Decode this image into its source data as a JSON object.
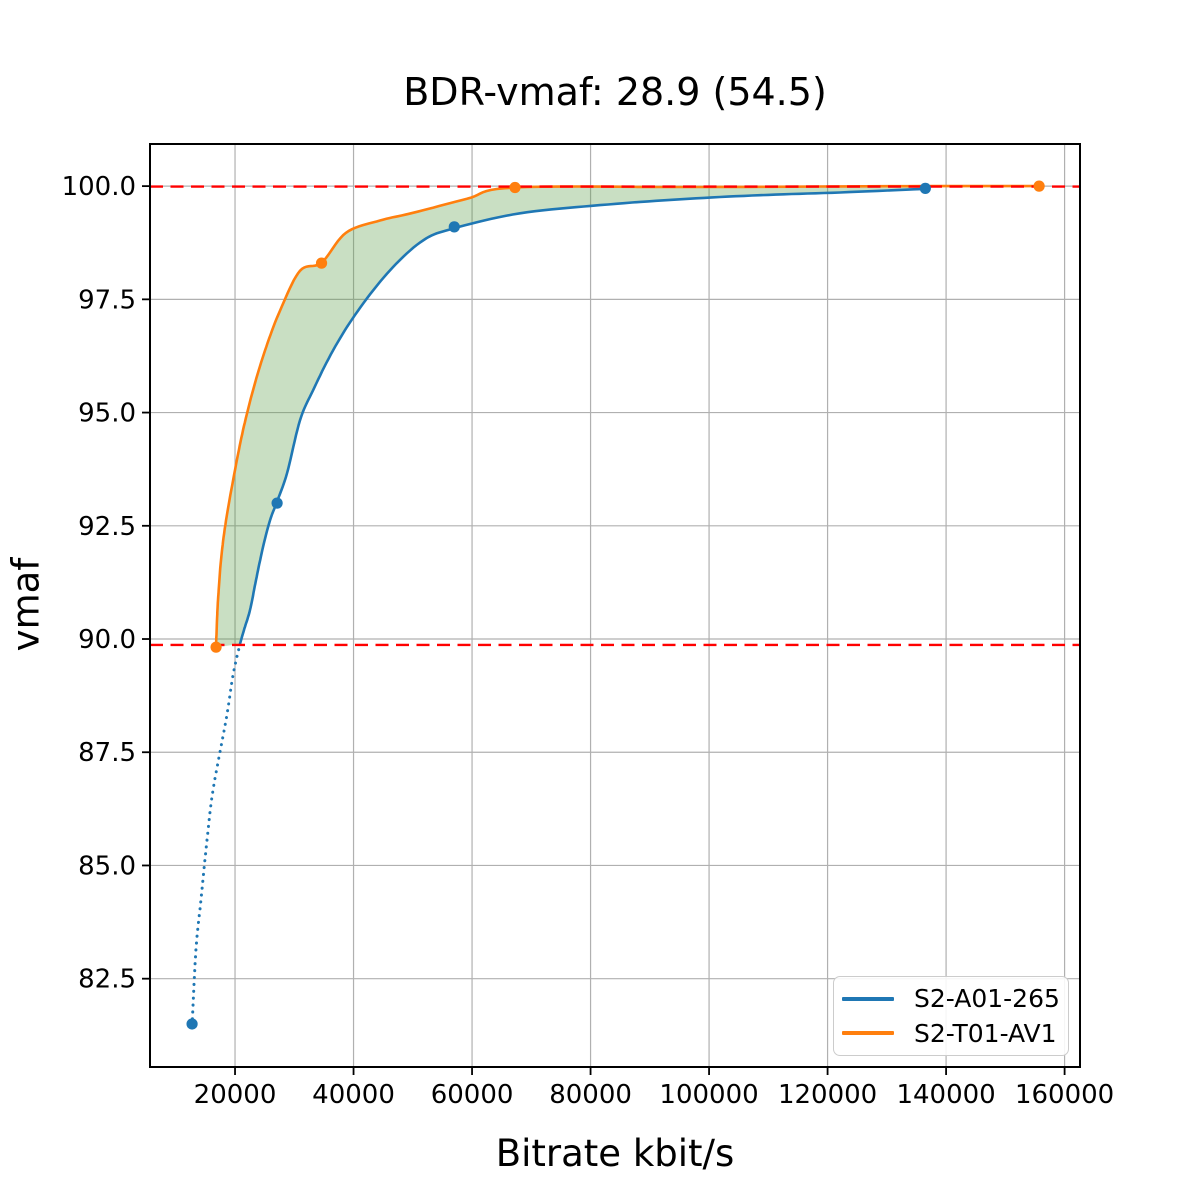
{
  "figure": {
    "title": "BDR-vmaf: 28.9 (54.5)",
    "xlabel": "Bitrate kbit/s",
    "ylabel": "vmaf"
  },
  "legend": {
    "entries": [
      {
        "label": "S2-A01-265",
        "color": "#1f77b4"
      },
      {
        "label": "S2-T01-AV1",
        "color": "#ff7f0e"
      }
    ]
  },
  "chart_data": {
    "type": "line",
    "title": "BDR-vmaf: 28.9 (54.5)",
    "xlabel": "Bitrate kbit/s",
    "ylabel": "vmaf",
    "xlim": [
      5650,
      162600
    ],
    "ylim": [
      80.55,
      100.93
    ],
    "grid": true,
    "grid_color": "#b0b0b0",
    "spine_color": "#000000",
    "legend_position": "lower right",
    "x_ticks": [
      20000,
      40000,
      60000,
      80000,
      100000,
      120000,
      140000,
      160000
    ],
    "x_tick_labels": [
      "20000",
      "40000",
      "60000",
      "80000",
      "100000",
      "120000",
      "140000",
      "160000"
    ],
    "y_ticks": [
      82.5,
      85.0,
      87.5,
      90.0,
      92.5,
      95.0,
      97.5,
      100.0
    ],
    "y_tick_labels": [
      "82.5",
      "85.0",
      "87.5",
      "90.0",
      "92.5",
      "95.0",
      "97.5",
      "100.0"
    ],
    "hlines": [
      {
        "y": 99.99,
        "color": "#ff0000",
        "style": "dashed"
      },
      {
        "y": 89.87,
        "color": "#ff0000",
        "style": "dashed"
      }
    ],
    "band": {
      "fill_between": [
        "S2-T01-AV1",
        "S2-A01-265"
      ],
      "color": "#5a9e48",
      "opacity": 0.33
    },
    "series": [
      {
        "name": "S2-A01-265",
        "color": "#1f77b4",
        "points": [
          [
            12750,
            81.5
          ],
          [
            27100,
            93.0
          ],
          [
            57000,
            99.1
          ],
          [
            136500,
            99.95
          ]
        ],
        "dotted_curve": [
          [
            12750,
            81.46
          ],
          [
            13400,
            83.13
          ],
          [
            14250,
            84.24
          ],
          [
            15270,
            85.56
          ],
          [
            16280,
            86.66
          ],
          [
            18480,
            88.21
          ],
          [
            19660,
            89.2
          ],
          [
            20840,
            89.89
          ]
        ],
        "solid_curve": [
          [
            20840,
            89.89
          ],
          [
            21510,
            90.2
          ],
          [
            22530,
            90.64
          ],
          [
            23540,
            91.3
          ],
          [
            24720,
            92.03
          ],
          [
            25900,
            92.62
          ],
          [
            27100,
            93.04
          ],
          [
            28770,
            93.66
          ],
          [
            30965,
            94.83
          ],
          [
            33160,
            95.49
          ],
          [
            36530,
            96.37
          ],
          [
            40750,
            97.25
          ],
          [
            46150,
            98.14
          ],
          [
            51720,
            98.8
          ],
          [
            57000,
            99.07
          ],
          [
            68090,
            99.4
          ],
          [
            81590,
            99.58
          ],
          [
            95090,
            99.71
          ],
          [
            108590,
            99.8
          ],
          [
            122090,
            99.86
          ],
          [
            136500,
            99.94
          ]
        ]
      },
      {
        "name": "S2-T01-AV1",
        "color": "#ff7f0e",
        "points": [
          [
            16800,
            89.82
          ],
          [
            34600,
            98.3
          ],
          [
            67250,
            99.97
          ],
          [
            155700,
            100.0
          ]
        ],
        "solid_curve": [
          [
            16790,
            89.82
          ],
          [
            16960,
            90.42
          ],
          [
            17130,
            90.86
          ],
          [
            17630,
            91.74
          ],
          [
            18480,
            92.62
          ],
          [
            19995,
            93.73
          ],
          [
            21350,
            94.61
          ],
          [
            23030,
            95.49
          ],
          [
            25060,
            96.37
          ],
          [
            27590,
            97.25
          ],
          [
            30965,
            98.13
          ],
          [
            34600,
            98.31
          ],
          [
            38730,
            98.97
          ],
          [
            44470,
            99.24
          ],
          [
            50040,
            99.41
          ],
          [
            59150,
            99.72
          ],
          [
            67250,
            99.97
          ],
          [
            98500,
            99.98
          ],
          [
            136500,
            100.0
          ],
          [
            155700,
            100.0
          ]
        ]
      }
    ]
  }
}
